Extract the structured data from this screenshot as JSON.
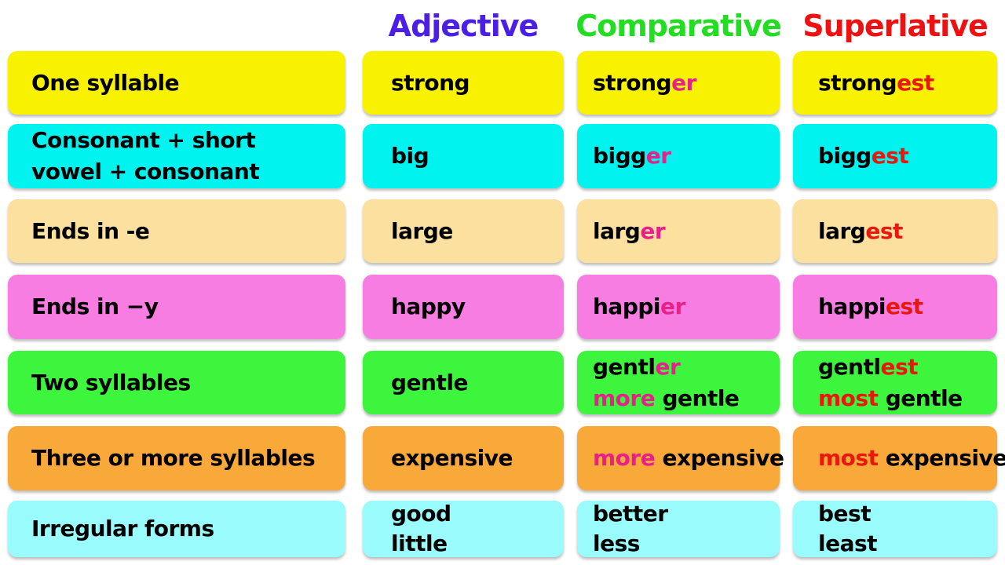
{
  "headers": [
    {
      "text": "",
      "color": "#000000"
    },
    {
      "text": "Adjective",
      "color": "#4b1fe6"
    },
    {
      "text": "Comparative",
      "color": "#22dd22"
    },
    {
      "text": "Superlative",
      "color": "#ee1111"
    }
  ],
  "accent_colors": {
    "comparative_suffix": "#e8208a",
    "superlative_suffix": "#e8180e"
  },
  "rows": [
    {
      "color": "#f8f200",
      "cells": [
        [
          [
            {
              "t": "One syllable"
            }
          ]
        ],
        [
          [
            {
              "t": "strong"
            }
          ]
        ],
        [
          [
            {
              "t": "strong"
            },
            {
              "t": "er",
              "c": "#e8208a"
            }
          ]
        ],
        [
          [
            {
              "t": "strong"
            },
            {
              "t": "est",
              "c": "#e8180e"
            }
          ]
        ]
      ]
    },
    {
      "color": "#00f3ee",
      "cells": [
        [
          [
            {
              "t": "Consonant + short"
            }
          ],
          [
            {
              "t": "vowel + consonant"
            }
          ]
        ],
        [
          [
            {
              "t": "big"
            }
          ]
        ],
        [
          [
            {
              "t": "bigg"
            },
            {
              "t": "er",
              "c": "#e8208a"
            }
          ]
        ],
        [
          [
            {
              "t": "bigg"
            },
            {
              "t": "est",
              "c": "#e8180e"
            }
          ]
        ]
      ]
    },
    {
      "color": "#fbe0a0",
      "cells": [
        [
          [
            {
              "t": "Ends in -e"
            }
          ]
        ],
        [
          [
            {
              "t": "large"
            }
          ]
        ],
        [
          [
            {
              "t": "larg"
            },
            {
              "t": "er",
              "c": "#e8208a"
            }
          ]
        ],
        [
          [
            {
              "t": "larg"
            },
            {
              "t": "est",
              "c": "#e8180e"
            }
          ]
        ]
      ]
    },
    {
      "color": "#f77de2",
      "cells": [
        [
          [
            {
              "t": "Ends in −y"
            }
          ]
        ],
        [
          [
            {
              "t": "happy"
            }
          ]
        ],
        [
          [
            {
              "t": "happi"
            },
            {
              "t": "er",
              "c": "#e8208a"
            }
          ]
        ],
        [
          [
            {
              "t": "happi"
            },
            {
              "t": "est",
              "c": "#e8180e"
            }
          ]
        ]
      ]
    },
    {
      "color": "#3ef53e",
      "cells": [
        [
          [
            {
              "t": "Two syllables"
            }
          ]
        ],
        [
          [
            {
              "t": "gentle"
            }
          ]
        ],
        [
          [
            {
              "t": "gentl"
            },
            {
              "t": "er",
              "c": "#e8208a"
            }
          ],
          [
            {
              "t": "more",
              "c": "#e8208a"
            },
            {
              "t": " gentle"
            }
          ]
        ],
        [
          [
            {
              "t": "gentl"
            },
            {
              "t": "est",
              "c": "#e8180e"
            }
          ],
          [
            {
              "t": "most",
              "c": "#e8180e"
            },
            {
              "t": " gentle"
            }
          ]
        ]
      ]
    },
    {
      "color": "#f9a93a",
      "cells": [
        [
          [
            {
              "t": "Three or more syllables"
            }
          ]
        ],
        [
          [
            {
              "t": "expensive"
            }
          ]
        ],
        [
          [
            {
              "t": "more",
              "c": "#e8208a"
            },
            {
              "t": " expensive"
            }
          ]
        ],
        [
          [
            {
              "t": "most",
              "c": "#e8180e"
            },
            {
              "t": " expensive"
            }
          ]
        ]
      ]
    },
    {
      "color": "#99fbfb",
      "cells": [
        [
          [
            {
              "t": "Irregular forms"
            }
          ]
        ],
        [
          [
            {
              "t": "good"
            }
          ],
          [
            {
              "t": "little"
            }
          ]
        ],
        [
          [
            {
              "t": "better"
            }
          ],
          [
            {
              "t": "less"
            }
          ]
        ],
        [
          [
            {
              "t": "best"
            }
          ],
          [
            {
              "t": "least"
            }
          ]
        ]
      ]
    }
  ]
}
